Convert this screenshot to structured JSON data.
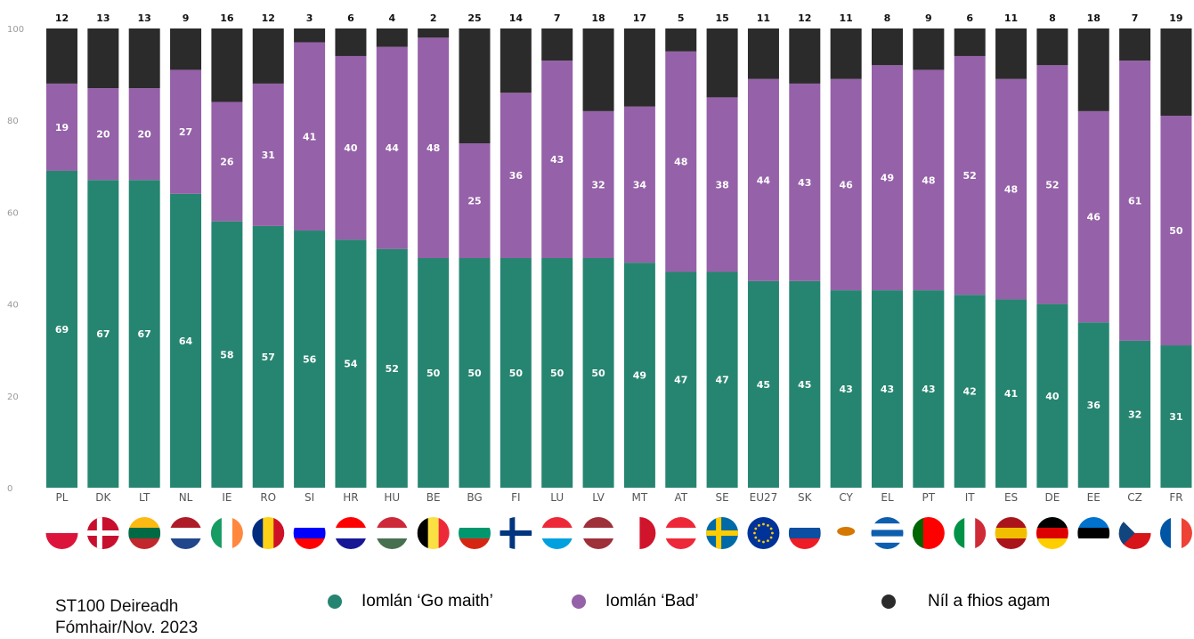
{
  "footer": {
    "source": "ST100 Deireadh\nFómhair/Nov. 2023"
  },
  "legend": [
    {
      "label": "Iomlán ‘Go maith’",
      "color": "#268570"
    },
    {
      "label": "Iomlán ‘Bad’",
      "color": "#9561a8"
    },
    {
      "label": "Níl a fhios agam",
      "color": "#2b2b2b"
    }
  ],
  "chart_data": {
    "type": "bar",
    "stacked": true,
    "ylim": [
      0,
      100
    ],
    "yticks": [
      0,
      20,
      40,
      60,
      80,
      100
    ],
    "categories": [
      "PL",
      "DK",
      "LT",
      "NL",
      "IE",
      "RO",
      "SI",
      "HR",
      "HU",
      "BE",
      "BG",
      "FI",
      "LU",
      "LV",
      "MT",
      "AT",
      "SE",
      "EU27",
      "SK",
      "CY",
      "EL",
      "PT",
      "IT",
      "ES",
      "DE",
      "EE",
      "CZ",
      "FR"
    ],
    "series": [
      {
        "name": "Iomlán ‘Go maith’",
        "color": "#268570",
        "values": [
          69,
          67,
          67,
          64,
          58,
          57,
          56,
          54,
          52,
          50,
          50,
          50,
          50,
          50,
          49,
          47,
          47,
          45,
          45,
          43,
          43,
          43,
          42,
          41,
          40,
          36,
          32,
          31
        ]
      },
      {
        "name": "Iomlán ‘Bad’",
        "color": "#9561a8",
        "values": [
          19,
          20,
          20,
          27,
          26,
          31,
          41,
          40,
          44,
          48,
          25,
          36,
          43,
          32,
          34,
          48,
          38,
          44,
          43,
          46,
          49,
          48,
          52,
          48,
          52,
          46,
          61,
          50
        ]
      },
      {
        "name": "Níl a fhios agam",
        "color": "#2b2b2b",
        "values": [
          12,
          13,
          13,
          9,
          16,
          12,
          3,
          6,
          4,
          2,
          25,
          14,
          7,
          18,
          17,
          5,
          15,
          11,
          12,
          11,
          8,
          9,
          6,
          11,
          8,
          18,
          7,
          19
        ]
      }
    ],
    "flags": [
      {
        "icon": "flag-pl-icon",
        "stripes": [
          "#ffffff",
          "#dc143c"
        ],
        "dir": "h"
      },
      {
        "icon": "flag-dk-icon",
        "stripes": [
          "#c8102e"
        ],
        "dir": "h",
        "cross": "#ffffff"
      },
      {
        "icon": "flag-lt-icon",
        "stripes": [
          "#fdb913",
          "#006a44",
          "#c1272d"
        ],
        "dir": "h"
      },
      {
        "icon": "flag-nl-icon",
        "stripes": [
          "#ae1c28",
          "#ffffff",
          "#21468b"
        ],
        "dir": "h"
      },
      {
        "icon": "flag-ie-icon",
        "stripes": [
          "#169b62",
          "#ffffff",
          "#ff883e"
        ],
        "dir": "v"
      },
      {
        "icon": "flag-ro-icon",
        "stripes": [
          "#002b7f",
          "#fcd116",
          "#ce1126"
        ],
        "dir": "v"
      },
      {
        "icon": "flag-si-icon",
        "stripes": [
          "#ffffff",
          "#0000ff",
          "#ff0000"
        ],
        "dir": "h"
      },
      {
        "icon": "flag-hr-icon",
        "stripes": [
          "#ff0000",
          "#ffffff",
          "#171796"
        ],
        "dir": "h"
      },
      {
        "icon": "flag-hu-icon",
        "stripes": [
          "#ce2939",
          "#ffffff",
          "#477050"
        ],
        "dir": "h"
      },
      {
        "icon": "flag-be-icon",
        "stripes": [
          "#000000",
          "#fae042",
          "#ed2939"
        ],
        "dir": "v"
      },
      {
        "icon": "flag-bg-icon",
        "stripes": [
          "#ffffff",
          "#00966e",
          "#d62612"
        ],
        "dir": "h"
      },
      {
        "icon": "flag-fi-icon",
        "stripes": [
          "#ffffff"
        ],
        "dir": "h",
        "cross": "#003580"
      },
      {
        "icon": "flag-lu-icon",
        "stripes": [
          "#ed2939",
          "#ffffff",
          "#00a1de"
        ],
        "dir": "h"
      },
      {
        "icon": "flag-lv-icon",
        "stripes": [
          "#9e3039",
          "#ffffff",
          "#9e3039"
        ],
        "dir": "h"
      },
      {
        "icon": "flag-mt-icon",
        "stripes": [
          "#ffffff",
          "#cf142b"
        ],
        "dir": "v"
      },
      {
        "icon": "flag-at-icon",
        "stripes": [
          "#ed2939",
          "#ffffff",
          "#ed2939"
        ],
        "dir": "h"
      },
      {
        "icon": "flag-se-icon",
        "stripes": [
          "#006aa7"
        ],
        "dir": "h",
        "cross": "#fecc00"
      },
      {
        "icon": "flag-eu-icon",
        "stripes": [
          "#003399"
        ],
        "dir": "h",
        "stars": "#ffcc00"
      },
      {
        "icon": "flag-sk-icon",
        "stripes": [
          "#ffffff",
          "#0b4ea2",
          "#ee1c25"
        ],
        "dir": "h"
      },
      {
        "icon": "flag-cy-icon",
        "stripes": [
          "#ffffff"
        ],
        "dir": "h",
        "island": "#d57800"
      },
      {
        "icon": "flag-el-icon",
        "stripes": [
          "#0d5eaf",
          "#ffffff",
          "#0d5eaf",
          "#ffffff",
          "#0d5eaf"
        ],
        "dir": "h"
      },
      {
        "icon": "flag-pt-icon",
        "stripes": [
          "#006600",
          "#ff0000",
          "#ff0000"
        ],
        "dir": "v"
      },
      {
        "icon": "flag-it-icon",
        "stripes": [
          "#009246",
          "#ffffff",
          "#ce2b37"
        ],
        "dir": "v"
      },
      {
        "icon": "flag-es-icon",
        "stripes": [
          "#aa151b",
          "#f1bf00",
          "#aa151b"
        ],
        "dir": "h"
      },
      {
        "icon": "flag-de-icon",
        "stripes": [
          "#000000",
          "#dd0000",
          "#ffce00"
        ],
        "dir": "h"
      },
      {
        "icon": "flag-ee-icon",
        "stripes": [
          "#0072ce",
          "#000000",
          "#ffffff"
        ],
        "dir": "h"
      },
      {
        "icon": "flag-cz-icon",
        "stripes": [
          "#ffffff",
          "#d7141a"
        ],
        "dir": "h",
        "triangle": "#11457e"
      },
      {
        "icon": "flag-fr-icon",
        "stripes": [
          "#0055a4",
          "#ffffff",
          "#ef4135"
        ],
        "dir": "v"
      }
    ]
  }
}
